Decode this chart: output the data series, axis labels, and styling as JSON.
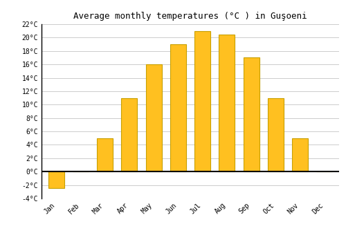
{
  "title": "Average monthly temperatures (°C ) in Guşoeni",
  "months": [
    "Jan",
    "Feb",
    "Mar",
    "Apr",
    "May",
    "Jun",
    "Jul",
    "Aug",
    "Sep",
    "Oct",
    "Nov",
    "Dec"
  ],
  "values": [
    -2.5,
    0,
    5.0,
    11.0,
    16.0,
    19.0,
    21.0,
    20.5,
    17.0,
    11.0,
    5.0,
    0
  ],
  "bar_color": "#FFC020",
  "bar_edge_color": "#C8A000",
  "background_color": "#ffffff",
  "grid_color": "#cccccc",
  "ylim": [
    -4,
    22
  ],
  "yticks": [
    -4,
    -2,
    0,
    2,
    4,
    6,
    8,
    10,
    12,
    14,
    16,
    18,
    20,
    22
  ],
  "ytick_labels": [
    "-4°C",
    "-2°C",
    "0°C",
    "2°C",
    "4°C",
    "6°C",
    "8°C",
    "10°C",
    "12°C",
    "14°C",
    "16°C",
    "18°C",
    "20°C",
    "22°C"
  ]
}
